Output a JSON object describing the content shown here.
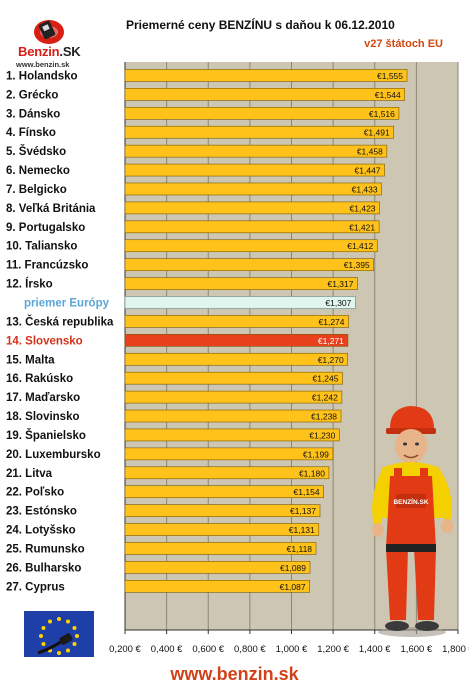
{
  "header": {
    "title": "Priemerné ceny BENZÍNU s daňou k 06.12.2010",
    "subtitle": "v27 štátoch EU"
  },
  "logo": {
    "brand_main": "Benzin",
    "brand_suffix": ".SK",
    "url": "www.benzin.sk"
  },
  "footer": {
    "url": "www.benzin.sk"
  },
  "worker": {
    "badge": "BENZÍN.SK"
  },
  "colors": {
    "background": "#ffffff",
    "plot_background": "#cdc6b2",
    "bar_fill": "#ffc21a",
    "bar_stroke": "#7a5a00",
    "highlight_bar": "#e8401c",
    "highlight_label": "#d2321a",
    "average_bar": "#dff5ee",
    "average_label": "#5aa6d6",
    "title_color": "#111111",
    "subtitle_color": "#d2470f",
    "footer_color": "#d2421a"
  },
  "chart_data": {
    "type": "bar",
    "orientation": "horizontal",
    "title": "Priemerné ceny BENZÍNU s daňou k 06.12.2010",
    "subtitle": "v27 štátoch EU",
    "xlim": [
      0.2,
      1.8
    ],
    "x_ticks": [
      "0,200 €",
      "0,400 €",
      "0,600 €",
      "0,800 €",
      "1,000 €",
      "1,200 €",
      "1,400 €",
      "1,600 €",
      "1,800 €"
    ],
    "tick_values": [
      0.2,
      0.4,
      0.6,
      0.8,
      1.0,
      1.2,
      1.4,
      1.6,
      1.8
    ],
    "grid": "vertical",
    "legend": "none",
    "categories": [
      "1. Holandsko",
      "2. Grécko",
      "3. Dánsko",
      "4. Fínsko",
      "5. Švédsko",
      "6. Nemecko",
      "7. Belgicko",
      "8. Veľká Británia",
      "9. Portugalsko",
      "10. Taliansko",
      "11. Francúzsko",
      "12. Írsko",
      "priemer Európy",
      "13. Česká republika",
      "14. Slovensko",
      "15. Malta",
      "16. Rakúsko",
      "17. Maďarsko",
      "18. Slovinsko",
      "19. Španielsko",
      "20. Luxembursko",
      "21. Litva",
      "22. Poľsko",
      "23. Estónsko",
      "24. Lotyšsko",
      "25. Rumunsko",
      "26. Bulharsko",
      "27. Cyprus"
    ],
    "values": [
      1.555,
      1.544,
      1.516,
      1.491,
      1.458,
      1.447,
      1.433,
      1.423,
      1.421,
      1.412,
      1.395,
      1.317,
      1.307,
      1.274,
      1.271,
      1.27,
      1.245,
      1.242,
      1.238,
      1.23,
      1.199,
      1.18,
      1.154,
      1.137,
      1.131,
      1.118,
      1.089,
      1.087
    ],
    "value_labels": [
      "€1,555",
      "€1,544",
      "€1,516",
      "€1,491",
      "€1,458",
      "€1,447",
      "€1,433",
      "€1,423",
      "€1,421",
      "€1,412",
      "€1,395",
      "€1,317",
      "€1,307",
      "€1,274",
      "€1,271",
      "€1,270",
      "€1,245",
      "€1,242",
      "€1,238",
      "€1,230",
      "€1,199",
      "€1,180",
      "€1,154",
      "€1,137",
      "€1,131",
      "€1,118",
      "€1,089",
      "€1,087"
    ],
    "average_category": "priemer Európy",
    "highlight_category": "14. Slovensko"
  }
}
